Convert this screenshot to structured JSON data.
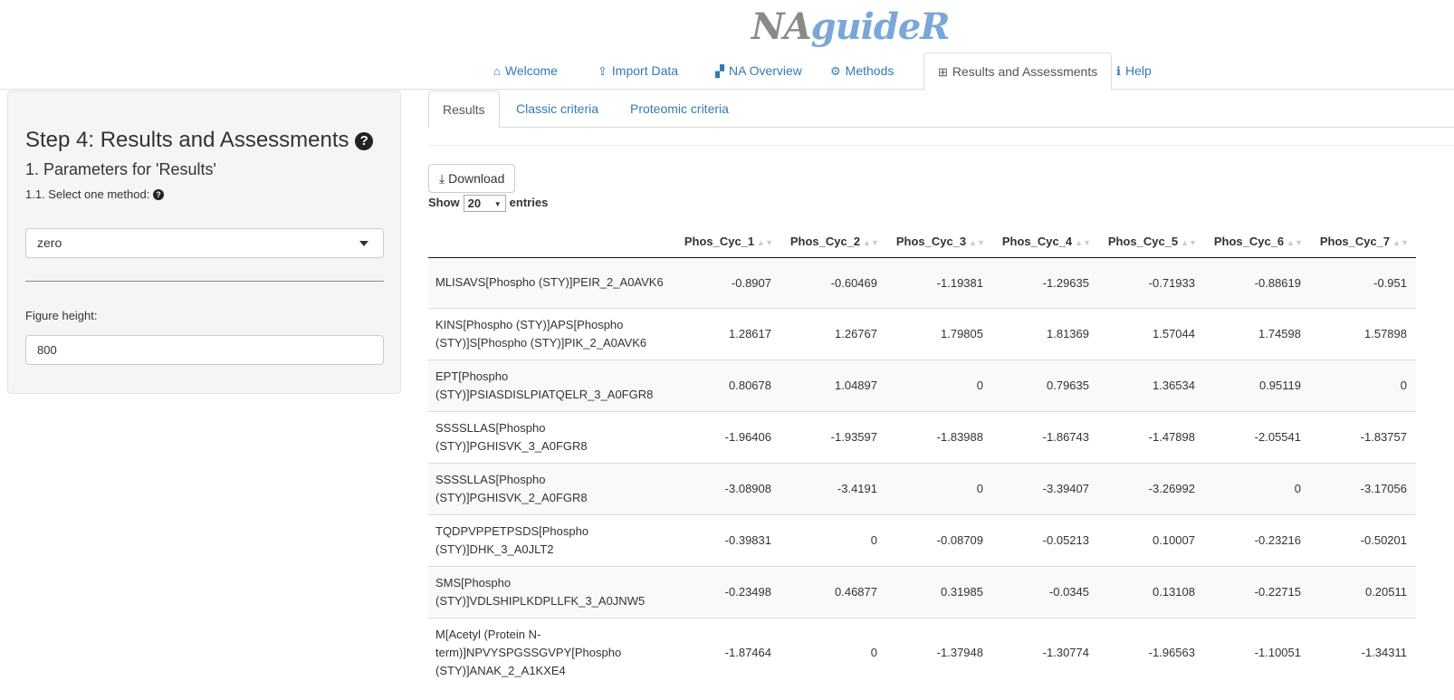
{
  "app": {
    "logo_part1": "NA",
    "logo_part2": "guideR"
  },
  "nav": [
    {
      "label": "Welcome",
      "icon": "home-icon",
      "glyph": "⌂"
    },
    {
      "label": "Import Data",
      "icon": "upload-icon",
      "glyph": "⇪"
    },
    {
      "label": "NA Overview",
      "icon": "binoculars-icon",
      "glyph": "▞"
    },
    {
      "label": "Methods",
      "icon": "cogs-icon",
      "glyph": "⚙"
    },
    {
      "label": "Results and Assessments",
      "icon": "table-icon",
      "glyph": "⊞",
      "active": true
    },
    {
      "label": "Help",
      "icon": "info-icon",
      "glyph": "ℹ"
    }
  ],
  "sidebar": {
    "title": "Step 4: Results and Assessments",
    "subtitle": "1. Parameters for 'Results'",
    "method_label": "1.1. Select one method:",
    "method_value": "zero",
    "height_label": "Figure height:",
    "height_value": "800",
    "help_glyph": "?"
  },
  "subtabs": [
    "Results",
    "Classic criteria",
    "Proteomic criteria"
  ],
  "download_label": "Download",
  "show": {
    "pre": "Show",
    "value": "20",
    "post": "entries"
  },
  "table": {
    "columns": [
      "",
      "Phos_Cyc_1",
      "Phos_Cyc_2",
      "Phos_Cyc_3",
      "Phos_Cyc_4",
      "Phos_Cyc_5",
      "Phos_Cyc_6",
      "Phos_Cyc_7"
    ],
    "rows": [
      [
        "MLISAVS[Phospho (STY)]PEIR_2_A0AVK6",
        "-0.8907",
        "-0.60469",
        "-1.19381",
        "-1.29635",
        "-0.71933",
        "-0.88619",
        "-0.951"
      ],
      [
        "KINS[Phospho (STY)]APS[Phospho (STY)]S[Phospho (STY)]PIK_2_A0AVK6",
        "1.28617",
        "1.26767",
        "1.79805",
        "1.81369",
        "1.57044",
        "1.74598",
        "1.57898"
      ],
      [
        "EPT[Phospho (STY)]PSIASDISLPIATQELR_3_A0FGR8",
        "0.80678",
        "1.04897",
        "0",
        "0.79635",
        "1.36534",
        "0.95119",
        "0"
      ],
      [
        "SSSSLLAS[Phospho (STY)]PGHISVK_3_A0FGR8",
        "-1.96406",
        "-1.93597",
        "-1.83988",
        "-1.86743",
        "-1.47898",
        "-2.05541",
        "-1.83757"
      ],
      [
        "SSSSLLAS[Phospho (STY)]PGHISVK_2_A0FGR8",
        "-3.08908",
        "-3.4191",
        "0",
        "-3.39407",
        "-3.26992",
        "0",
        "-3.17056"
      ],
      [
        "TQDPVPPETPSDS[Phospho (STY)]DHK_3_A0JLT2",
        "-0.39831",
        "0",
        "-0.08709",
        "-0.05213",
        "0.10007",
        "-0.23216",
        "-0.50201"
      ],
      [
        "SMS[Phospho (STY)]VDLSHIPLKDPLLFK_3_A0JNW5",
        "-0.23498",
        "0.46877",
        "0.31985",
        "-0.0345",
        "0.13108",
        "-0.22715",
        "0.20511"
      ],
      [
        "M[Acetyl (Protein N-term)]NPVYSPGSSGVPY[Phospho (STY)]ANAK_2_A1KXE4",
        "-1.87464",
        "0",
        "-1.37948",
        "-1.30774",
        "-1.96563",
        "-1.10051",
        "-1.34311"
      ]
    ]
  }
}
